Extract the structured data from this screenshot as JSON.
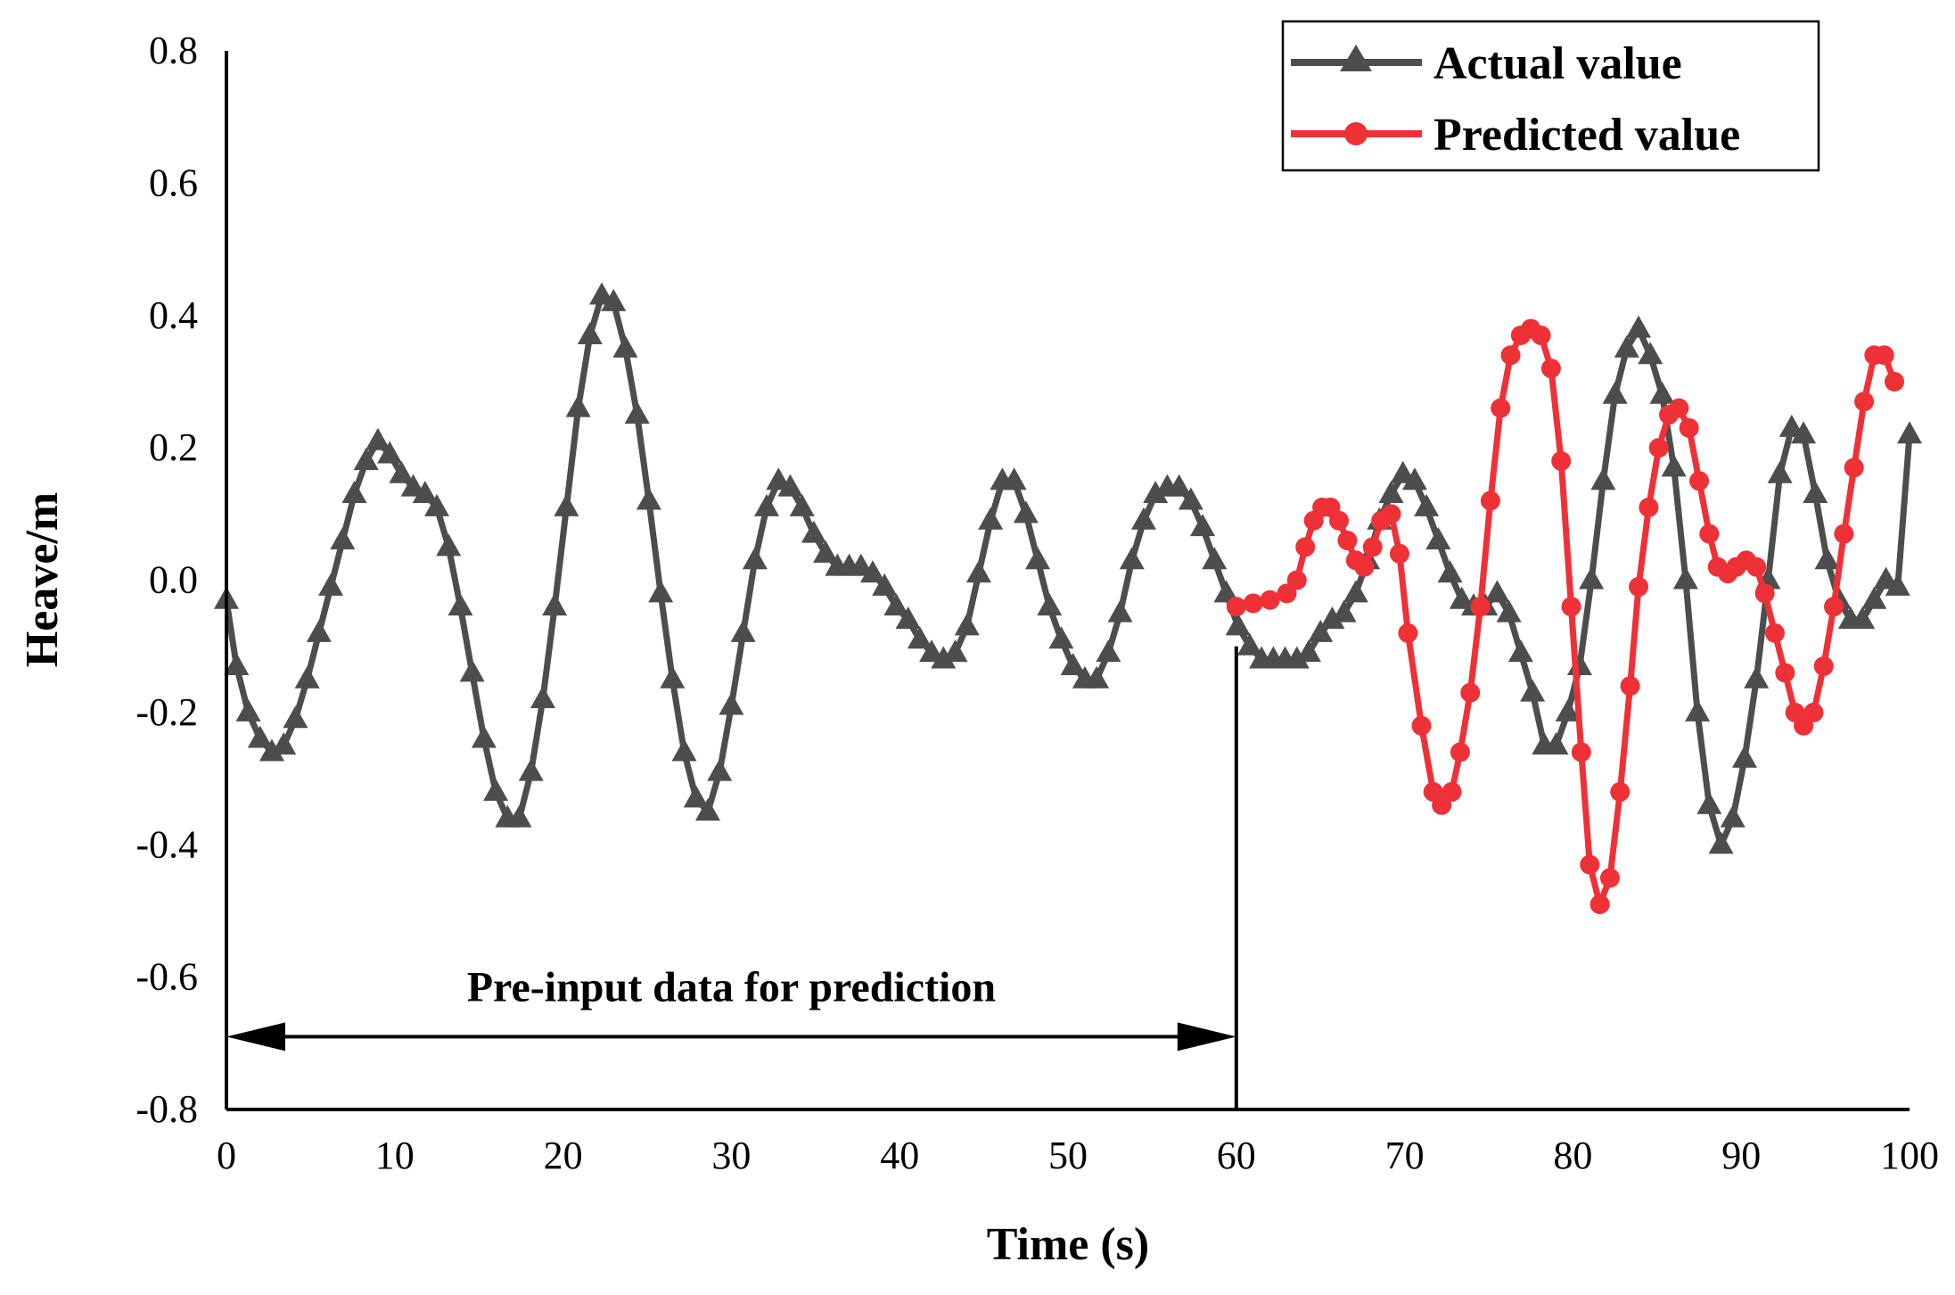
{
  "chart_data": {
    "type": "line",
    "title": "",
    "xlabel": "Time (s)",
    "ylabel": "Heave/m",
    "xlim": [
      0,
      100
    ],
    "ylim": [
      -0.8,
      0.8
    ],
    "xticks": [
      0,
      10,
      20,
      30,
      40,
      50,
      60,
      70,
      80,
      90,
      100
    ],
    "yticks": [
      -0.8,
      -0.6,
      -0.4,
      -0.2,
      0.0,
      0.2,
      0.4,
      0.6,
      0.8
    ],
    "ytick_labels": [
      "-0.8",
      "-0.6",
      "-0.4",
      "-0.2",
      "0.0",
      "0.2",
      "0.4",
      "0.6",
      "0.8"
    ],
    "grid": false,
    "legend_position": "top-right",
    "series": [
      {
        "name": "Actual value",
        "color": "#4d4d4d",
        "marker": "triangle",
        "points": [
          [
            0,
            -0.03
          ],
          [
            0.6,
            -0.13
          ],
          [
            1.3,
            -0.2
          ],
          [
            2,
            -0.24
          ],
          [
            2.7,
            -0.26
          ],
          [
            3.4,
            -0.25
          ],
          [
            4.1,
            -0.21
          ],
          [
            4.8,
            -0.15
          ],
          [
            5.5,
            -0.08
          ],
          [
            6.2,
            -0.01
          ],
          [
            6.9,
            0.06
          ],
          [
            7.6,
            0.13
          ],
          [
            8.3,
            0.18
          ],
          [
            9,
            0.21
          ],
          [
            9.7,
            0.19
          ],
          [
            10.4,
            0.16
          ],
          [
            11.1,
            0.14
          ],
          [
            11.8,
            0.13
          ],
          [
            12.5,
            0.11
          ],
          [
            13.2,
            0.05
          ],
          [
            13.9,
            -0.04
          ],
          [
            14.6,
            -0.14
          ],
          [
            15.3,
            -0.24
          ],
          [
            16,
            -0.32
          ],
          [
            16.7,
            -0.36
          ],
          [
            17.4,
            -0.36
          ],
          [
            18.1,
            -0.29
          ],
          [
            18.8,
            -0.18
          ],
          [
            19.5,
            -0.04
          ],
          [
            20.2,
            0.11
          ],
          [
            20.9,
            0.26
          ],
          [
            21.6,
            0.37
          ],
          [
            22.3,
            0.43
          ],
          [
            23,
            0.42
          ],
          [
            23.7,
            0.35
          ],
          [
            24.4,
            0.25
          ],
          [
            25.1,
            0.12
          ],
          [
            25.8,
            -0.02
          ],
          [
            26.5,
            -0.15
          ],
          [
            27.2,
            -0.26
          ],
          [
            27.9,
            -0.33
          ],
          [
            28.6,
            -0.35
          ],
          [
            29.3,
            -0.29
          ],
          [
            30,
            -0.19
          ],
          [
            30.7,
            -0.08
          ],
          [
            31.4,
            0.03
          ],
          [
            32.1,
            0.11
          ],
          [
            32.8,
            0.15
          ],
          [
            33.5,
            0.14
          ],
          [
            34.2,
            0.11
          ],
          [
            34.9,
            0.07
          ],
          [
            35.6,
            0.04
          ],
          [
            36.3,
            0.02
          ],
          [
            37,
            0.02
          ],
          [
            37.7,
            0.02
          ],
          [
            38.4,
            0.01
          ],
          [
            39.1,
            -0.01
          ],
          [
            39.8,
            -0.04
          ],
          [
            40.5,
            -0.06
          ],
          [
            41.2,
            -0.09
          ],
          [
            41.9,
            -0.11
          ],
          [
            42.6,
            -0.12
          ],
          [
            43.3,
            -0.11
          ],
          [
            44,
            -0.07
          ],
          [
            44.7,
            0.01
          ],
          [
            45.4,
            0.09
          ],
          [
            46.1,
            0.15
          ],
          [
            46.8,
            0.15
          ],
          [
            47.5,
            0.1
          ],
          [
            48.2,
            0.03
          ],
          [
            48.9,
            -0.04
          ],
          [
            49.6,
            -0.09
          ],
          [
            50.3,
            -0.13
          ],
          [
            51,
            -0.15
          ],
          [
            51.7,
            -0.15
          ],
          [
            52.4,
            -0.11
          ],
          [
            53.1,
            -0.05
          ],
          [
            53.8,
            0.03
          ],
          [
            54.5,
            0.09
          ],
          [
            55.2,
            0.13
          ],
          [
            55.9,
            0.14
          ],
          [
            56.6,
            0.14
          ],
          [
            57.3,
            0.12
          ],
          [
            58,
            0.08
          ],
          [
            58.7,
            0.03
          ],
          [
            59.4,
            -0.02
          ],
          [
            60.1,
            -0.07
          ],
          [
            60.8,
            -0.1
          ],
          [
            61.5,
            -0.12
          ],
          [
            62.2,
            -0.12
          ],
          [
            62.9,
            -0.12
          ],
          [
            63.6,
            -0.12
          ],
          [
            64.3,
            -0.11
          ],
          [
            65,
            -0.08
          ],
          [
            65.7,
            -0.06
          ],
          [
            66.4,
            -0.05
          ],
          [
            67.1,
            -0.02
          ],
          [
            67.8,
            0.03
          ],
          [
            68.5,
            0.09
          ],
          [
            69.2,
            0.13
          ],
          [
            69.9,
            0.16
          ],
          [
            70.6,
            0.15
          ],
          [
            71.3,
            0.11
          ],
          [
            72,
            0.06
          ],
          [
            72.7,
            0.01
          ],
          [
            73.4,
            -0.03
          ],
          [
            74.1,
            -0.04
          ],
          [
            74.8,
            -0.04
          ],
          [
            75.5,
            -0.02
          ],
          [
            76.2,
            -0.05
          ],
          [
            76.9,
            -0.11
          ],
          [
            77.6,
            -0.17
          ],
          [
            78.3,
            -0.25
          ],
          [
            79,
            -0.25
          ],
          [
            79.7,
            -0.2
          ],
          [
            80.4,
            -0.13
          ],
          [
            81.1,
            0.0
          ],
          [
            81.8,
            0.15
          ],
          [
            82.5,
            0.28
          ],
          [
            83.2,
            0.35
          ],
          [
            83.9,
            0.38
          ],
          [
            84.6,
            0.34
          ],
          [
            85.3,
            0.28
          ],
          [
            86,
            0.17
          ],
          [
            86.7,
            0.0
          ],
          [
            87.4,
            -0.2
          ],
          [
            88.1,
            -0.34
          ],
          [
            88.8,
            -0.4
          ],
          [
            89.5,
            -0.36
          ],
          [
            90.2,
            -0.27
          ],
          [
            90.9,
            -0.15
          ],
          [
            91.6,
            0.0
          ],
          [
            92.3,
            0.16
          ],
          [
            93,
            0.23
          ],
          [
            93.7,
            0.22
          ],
          [
            94.4,
            0.13
          ],
          [
            95.1,
            0.03
          ],
          [
            95.8,
            -0.03
          ],
          [
            96.5,
            -0.06
          ],
          [
            97.2,
            -0.06
          ],
          [
            97.9,
            -0.03
          ],
          [
            98.6,
            0.0
          ],
          [
            99.3,
            -0.01
          ],
          [
            100,
            0.22
          ]
        ]
      },
      {
        "name": "Predicted value",
        "color": "#ee3137",
        "marker": "circle",
        "points": [
          [
            60,
            -0.04
          ],
          [
            61,
            -0.035
          ],
          [
            62,
            -0.03
          ],
          [
            63,
            -0.02
          ],
          [
            63.6,
            0.0
          ],
          [
            64.1,
            0.05
          ],
          [
            64.6,
            0.09
          ],
          [
            65.1,
            0.11
          ],
          [
            65.6,
            0.11
          ],
          [
            66.1,
            0.09
          ],
          [
            66.6,
            0.06
          ],
          [
            67.1,
            0.03
          ],
          [
            67.6,
            0.02
          ],
          [
            68.1,
            0.05
          ],
          [
            68.6,
            0.09
          ],
          [
            69.2,
            0.1
          ],
          [
            69.7,
            0.04
          ],
          [
            70.2,
            -0.08
          ],
          [
            71,
            -0.22
          ],
          [
            71.7,
            -0.32
          ],
          [
            72.2,
            -0.34
          ],
          [
            72.8,
            -0.32
          ],
          [
            73.3,
            -0.26
          ],
          [
            73.9,
            -0.17
          ],
          [
            74.5,
            -0.04
          ],
          [
            75.1,
            0.12
          ],
          [
            75.7,
            0.26
          ],
          [
            76.3,
            0.34
          ],
          [
            76.9,
            0.37
          ],
          [
            77.5,
            0.38
          ],
          [
            78.1,
            0.37
          ],
          [
            78.7,
            0.32
          ],
          [
            79.3,
            0.18
          ],
          [
            79.9,
            -0.04
          ],
          [
            80.5,
            -0.26
          ],
          [
            81,
            -0.43
          ],
          [
            81.6,
            -0.49
          ],
          [
            82.2,
            -0.45
          ],
          [
            82.8,
            -0.32
          ],
          [
            83.4,
            -0.16
          ],
          [
            83.9,
            -0.01
          ],
          [
            84.5,
            0.11
          ],
          [
            85.1,
            0.2
          ],
          [
            85.7,
            0.25
          ],
          [
            86.3,
            0.26
          ],
          [
            86.9,
            0.23
          ],
          [
            87.5,
            0.15
          ],
          [
            88.1,
            0.07
          ],
          [
            88.6,
            0.02
          ],
          [
            89.2,
            0.01
          ],
          [
            89.7,
            0.02
          ],
          [
            90.3,
            0.03
          ],
          [
            90.9,
            0.02
          ],
          [
            91.4,
            -0.02
          ],
          [
            92,
            -0.08
          ],
          [
            92.6,
            -0.14
          ],
          [
            93.2,
            -0.2
          ],
          [
            93.7,
            -0.22
          ],
          [
            94.3,
            -0.2
          ],
          [
            94.9,
            -0.13
          ],
          [
            95.5,
            -0.04
          ],
          [
            96.1,
            0.07
          ],
          [
            96.7,
            0.17
          ],
          [
            97.3,
            0.27
          ],
          [
            97.9,
            0.34
          ],
          [
            98.5,
            0.34
          ],
          [
            99.1,
            0.3
          ]
        ]
      }
    ],
    "annotations": [
      {
        "text": "Pre-input data for prediction",
        "type": "double-arrow",
        "x_range": [
          0,
          60
        ],
        "y": -0.69
      },
      {
        "type": "vertical-line",
        "x": 60,
        "y_range": [
          -0.8,
          -0.1
        ]
      }
    ]
  }
}
